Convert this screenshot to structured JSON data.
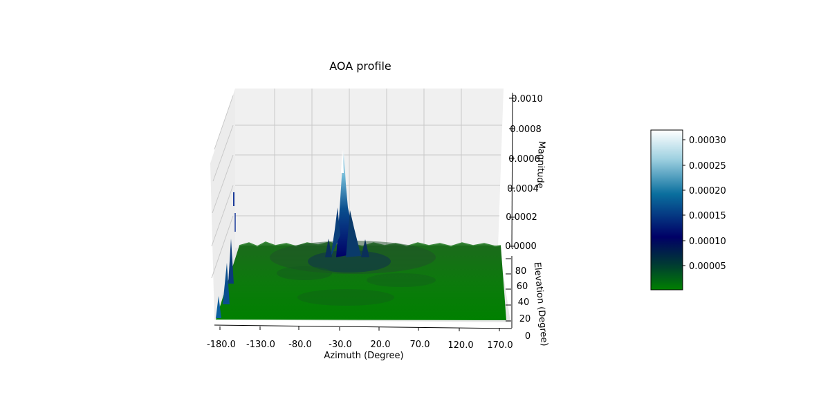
{
  "chart_data": {
    "type": "surface",
    "title": "AOA profile",
    "xlabel": "Azimuth (Degree)",
    "ylabel": "Elevation (Degree)",
    "zlabel": "Magnitude",
    "x_ticks": [
      "-180.0",
      "-130.0",
      "-80.0",
      "-30.0",
      "20.0",
      "70.0",
      "120.0",
      "170.0"
    ],
    "y_ticks": [
      "0",
      "20",
      "40",
      "60",
      "80"
    ],
    "z_ticks": [
      "0.0000",
      "0.0002",
      "0.0004",
      "0.0006",
      "0.0008",
      "0.0010"
    ],
    "xlim": [
      -180,
      180
    ],
    "ylim": [
      0,
      90
    ],
    "zlim": [
      0,
      0.001
    ],
    "colorbar_ticks": [
      "0.00005",
      "0.00010",
      "0.00015",
      "0.00020",
      "0.00025",
      "0.00030"
    ],
    "colorbar_range": [
      0,
      0.00032
    ],
    "colormap": [
      "#008000",
      "#003a33",
      "#000066",
      "#0a6f9e",
      "#9fd1e1",
      "#ffffff"
    ],
    "peak": {
      "azimuth": -30,
      "elevation": 40,
      "magnitude": 0.00032
    },
    "grid": true
  }
}
